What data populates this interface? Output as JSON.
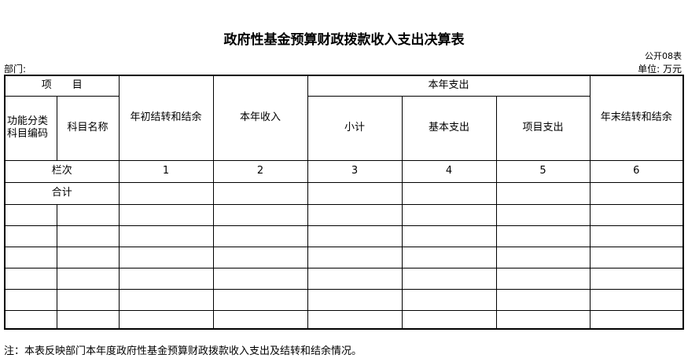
{
  "title": "政府性基金预算财政拨款收入支出决算表",
  "department_label": "部门:",
  "form_code": "公开08表",
  "unit_label": "单位: 万元",
  "table": {
    "item_header": "项　　目",
    "func_code_header": "功能分类科目编码",
    "subject_name_header": "科目名称",
    "opening_balance": "年初结转和结余",
    "income": "本年收入",
    "expenditure_group": "本年支出",
    "subtotal": "小计",
    "basic": "基本支出",
    "project": "项目支出",
    "closing_balance": "年末结转和结余",
    "row_index_label": "栏次",
    "col_numbers": [
      "1",
      "2",
      "3",
      "4",
      "5",
      "6"
    ],
    "total_label": "合计"
  },
  "note": "注：本表反映部门本年度政府性基金预算财政拨款收入支出及结转和结余情况。"
}
